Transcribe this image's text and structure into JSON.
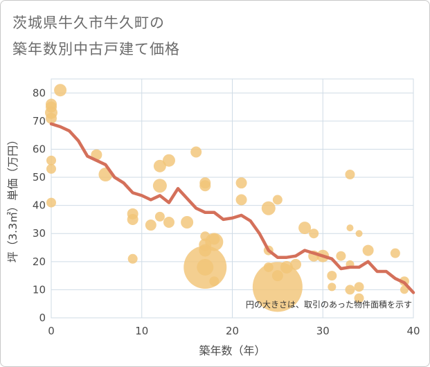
{
  "title_lines": [
    "茨城県牛久市牛久町の",
    "築年数別中古戸建て価格"
  ],
  "chart_data": {
    "type": "scatter",
    "title": "茨城県牛久市牛久町の築年数別中古戸建て価格",
    "xlabel": "築年数（年）",
    "ylabel": "坪（3.3㎡）単価（万円）",
    "xlim": [
      0,
      40
    ],
    "ylim": [
      0,
      85
    ],
    "xticks": [
      0,
      10,
      20,
      30,
      40
    ],
    "yticks": [
      0,
      10,
      20,
      30,
      40,
      50,
      60,
      70,
      80
    ],
    "grid": true,
    "note": "円の大きさは、取引のあった物件面積を示す",
    "colors": {
      "bubble": "#f2c477",
      "line": "#d4705a",
      "grid": "#cfdbe6"
    },
    "series": [
      {
        "kind": "bubble",
        "points": [
          {
            "x": 0,
            "y": 76,
            "s": 8
          },
          {
            "x": 0,
            "y": 75,
            "s": 8
          },
          {
            "x": 0,
            "y": 73,
            "s": 9
          },
          {
            "x": 0,
            "y": 71,
            "s": 8
          },
          {
            "x": 0,
            "y": 56,
            "s": 7
          },
          {
            "x": 0,
            "y": 53,
            "s": 7
          },
          {
            "x": 0,
            "y": 41,
            "s": 7
          },
          {
            "x": 1,
            "y": 81,
            "s": 9
          },
          {
            "x": 5,
            "y": 58,
            "s": 8
          },
          {
            "x": 6,
            "y": 51,
            "s": 10
          },
          {
            "x": 9,
            "y": 37,
            "s": 8
          },
          {
            "x": 9,
            "y": 35,
            "s": 8
          },
          {
            "x": 9,
            "y": 21,
            "s": 7
          },
          {
            "x": 11,
            "y": 33,
            "s": 8
          },
          {
            "x": 12,
            "y": 54,
            "s": 9
          },
          {
            "x": 12,
            "y": 47,
            "s": 10
          },
          {
            "x": 12,
            "y": 36,
            "s": 7
          },
          {
            "x": 13,
            "y": 56,
            "s": 9
          },
          {
            "x": 13,
            "y": 34,
            "s": 8
          },
          {
            "x": 15,
            "y": 34,
            "s": 9
          },
          {
            "x": 16,
            "y": 59,
            "s": 8
          },
          {
            "x": 17,
            "y": 48,
            "s": 8
          },
          {
            "x": 17,
            "y": 47,
            "s": 8
          },
          {
            "x": 17,
            "y": 29,
            "s": 7
          },
          {
            "x": 17,
            "y": 26,
            "s": 9
          },
          {
            "x": 17,
            "y": 24,
            "s": 9
          },
          {
            "x": 17,
            "y": 18,
            "s": 31
          },
          {
            "x": 17,
            "y": 18,
            "s": 12
          },
          {
            "x": 18,
            "y": 27,
            "s": 13
          },
          {
            "x": 18,
            "y": 28,
            "s": 8
          },
          {
            "x": 18,
            "y": 13,
            "s": 7
          },
          {
            "x": 21,
            "y": 48,
            "s": 8
          },
          {
            "x": 21,
            "y": 42,
            "s": 8
          },
          {
            "x": 24,
            "y": 39,
            "s": 10
          },
          {
            "x": 24,
            "y": 24,
            "s": 7
          },
          {
            "x": 24,
            "y": 18,
            "s": 7
          },
          {
            "x": 25,
            "y": 42,
            "s": 7
          },
          {
            "x": 25,
            "y": 11,
            "s": 36
          },
          {
            "x": 25,
            "y": 15,
            "s": 8
          },
          {
            "x": 26,
            "y": 18,
            "s": 9
          },
          {
            "x": 27,
            "y": 19,
            "s": 8
          },
          {
            "x": 28,
            "y": 32,
            "s": 9
          },
          {
            "x": 29,
            "y": 30,
            "s": 7
          },
          {
            "x": 29,
            "y": 22,
            "s": 8
          },
          {
            "x": 30,
            "y": 22,
            "s": 9
          },
          {
            "x": 31,
            "y": 15,
            "s": 7
          },
          {
            "x": 31,
            "y": 11,
            "s": 6
          },
          {
            "x": 32,
            "y": 22,
            "s": 7
          },
          {
            "x": 33,
            "y": 51,
            "s": 7
          },
          {
            "x": 33,
            "y": 32,
            "s": 5
          },
          {
            "x": 33,
            "y": 19,
            "s": 6
          },
          {
            "x": 33,
            "y": 10,
            "s": 7
          },
          {
            "x": 34,
            "y": 30,
            "s": 5
          },
          {
            "x": 34,
            "y": 11,
            "s": 7
          },
          {
            "x": 34,
            "y": 7,
            "s": 7
          },
          {
            "x": 35,
            "y": 24,
            "s": 8
          },
          {
            "x": 38,
            "y": 23,
            "s": 7
          },
          {
            "x": 39,
            "y": 13,
            "s": 7
          },
          {
            "x": 39,
            "y": 10,
            "s": 6
          }
        ]
      },
      {
        "kind": "line",
        "x": [
          0,
          1,
          2,
          3,
          4,
          5,
          6,
          7,
          8,
          9,
          10,
          11,
          12,
          13,
          14,
          15,
          16,
          17,
          18,
          19,
          20,
          21,
          22,
          23,
          24,
          25,
          26,
          27,
          28,
          29,
          30,
          31,
          32,
          33,
          34,
          35,
          36,
          37,
          38,
          39,
          40
        ],
        "y": [
          69,
          68,
          66.5,
          63,
          57.5,
          56,
          54.5,
          50,
          48,
          44.5,
          43.5,
          42,
          43.5,
          41,
          46,
          42.5,
          39,
          37.5,
          37.5,
          35,
          35.5,
          36.5,
          34.5,
          30,
          24,
          21.5,
          21.5,
          22,
          24,
          23,
          22,
          21,
          17.5,
          18,
          18,
          20,
          16.5,
          16.5,
          14,
          12.5,
          9
        ]
      }
    ]
  }
}
